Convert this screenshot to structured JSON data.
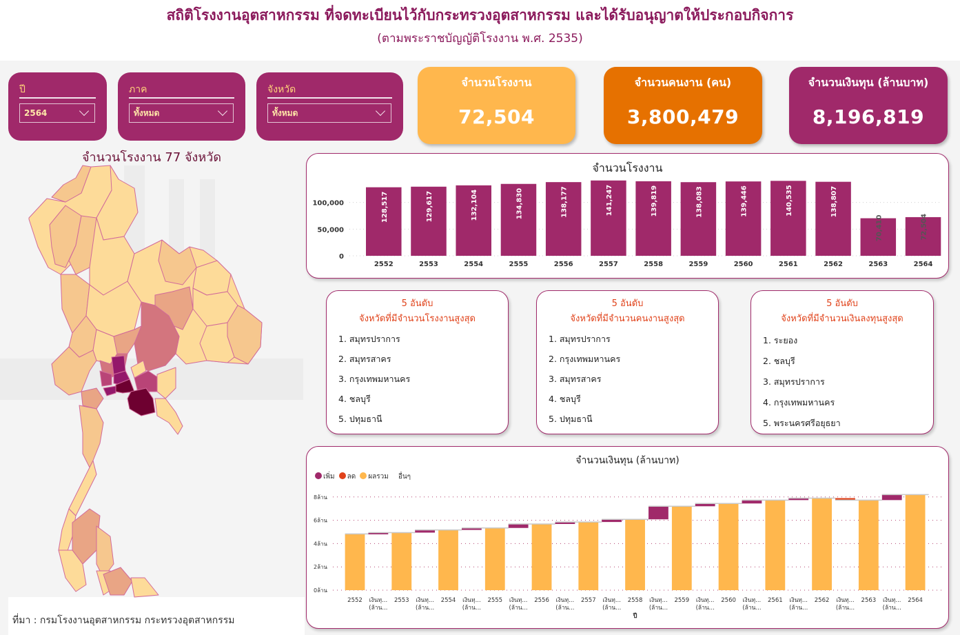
{
  "header": {
    "title": "สถิติโรงงานอุตสาหกรรม ที่จดทะเบียนไว้กับกระทรวงอุตสาหกรรม และได้รับอนุญาตให้ประกอบกิจการ",
    "subtitle": "(ตามพระราชบัญญัติโรงงาน พ.ศ. 2535)"
  },
  "filters": [
    {
      "label": "ปี",
      "value": "2564"
    },
    {
      "label": "ภาค",
      "value": "ทั้งหมด"
    },
    {
      "label": "จังหวัด",
      "value": "ทั้งหมด"
    }
  ],
  "kpis": [
    {
      "label": "จำนวนโรงงาน",
      "value": "72,504",
      "color": "#ffb74d"
    },
    {
      "label": "จำนวนคนงาน (คน)",
      "value": "3,800,479",
      "color": "#e67100"
    },
    {
      "label": "จำนวนเงินทุน (ล้านบาท)",
      "value": "8,196,819",
      "color": "#a0296a"
    }
  ],
  "map": {
    "title": "จำนวนโรงงาน 77 จังหวัด",
    "colors": [
      "#fddb99",
      "#f6c78e",
      "#e9a585",
      "#d3757e",
      "#b94477",
      "#93186a",
      "#6e0030"
    ]
  },
  "top5": [
    {
      "heading": "5 อันดับ",
      "subheading": "จังหวัดที่มีจำนวนโรงงานสูงสุด",
      "items": [
        "1. สมุทรปราการ",
        "2. สมุทรสาคร",
        "3. กรุงเทพมหานคร",
        "4. ชลบุรี",
        "5. ปทุมธานี"
      ]
    },
    {
      "heading": "5 อันดับ",
      "subheading": "จังหวัดที่มีจำนวนคนงานสูงสุด",
      "items": [
        "1. สมุทรปราการ",
        "2. กรุงเทพมหานคร",
        "3. สมุทรสาคร",
        "4. ชลบุรี",
        "5. ปทุมธานี"
      ]
    },
    {
      "heading": "5 อันดับ",
      "subheading": "จังหวัดที่มีจำนวนเงินลงทุนสูงสุด",
      "items": [
        "1. ระยอง",
        "2. ชลบุรี",
        "3. สมุทรปราการ",
        "4. กรุงเทพมหานคร",
        "5. พระนครศรีอยุธยา"
      ]
    }
  ],
  "source": "ที่มา : กรมโรงงานอุตสาหกรรม กระทรวงอุตสาหกรรม",
  "chart_data": [
    {
      "type": "bar",
      "title": "จำนวนโรงงาน",
      "categories": [
        "2552",
        "2553",
        "2554",
        "2555",
        "2556",
        "2557",
        "2558",
        "2559",
        "2560",
        "2561",
        "2562",
        "2563",
        "2564"
      ],
      "values": [
        128517,
        129617,
        132104,
        134830,
        138177,
        141247,
        139819,
        138083,
        139446,
        140535,
        138807,
        70410,
        72504
      ],
      "value_labels": [
        "128,517",
        "129,617",
        "132,104",
        "134,830",
        "138,177",
        "141,247",
        "139,819",
        "138,083",
        "139,446",
        "140,535",
        "138,807",
        "70,410",
        "72,504"
      ],
      "yticks": [
        0,
        50000,
        100000
      ],
      "ytick_labels": [
        "0",
        "50,000",
        "100,000"
      ],
      "ylim": [
        0,
        150000
      ],
      "color": "#a0296a",
      "grid": true
    },
    {
      "type": "waterfall",
      "title": "จำนวนเงินทุน (ล้านบาท)",
      "xlabel": "ปี",
      "legend": [
        {
          "label": "เพิ่ม",
          "color": "#a0296a"
        },
        {
          "label": "ลด",
          "color": "#e0421a"
        },
        {
          "label": "ผลรวม",
          "color": "#ffb74d"
        },
        {
          "label": "อื่นๆ",
          "color": null
        }
      ],
      "legend_position": "top-left",
      "yticks": [
        0,
        2,
        4,
        6,
        8
      ],
      "ytick_labels": [
        "0ล้าน",
        "2ล้าน",
        "4ล้าน",
        "6ล้าน",
        "8ล้าน"
      ],
      "ylim": [
        0,
        8.4
      ],
      "unit": "ล้าน",
      "years": [
        "2552",
        "2553",
        "2554",
        "2555",
        "2556",
        "2557",
        "2558",
        "2559",
        "2560",
        "2561",
        "2562",
        "2563",
        "2564"
      ],
      "totals": [
        4.83,
        4.94,
        5.17,
        5.34,
        5.68,
        5.85,
        6.08,
        7.2,
        7.44,
        7.73,
        7.9,
        7.73,
        8.2
      ],
      "change_label_line1": "เงินทุ...",
      "change_label_line2": "(ล้าน...",
      "grid": true
    }
  ]
}
